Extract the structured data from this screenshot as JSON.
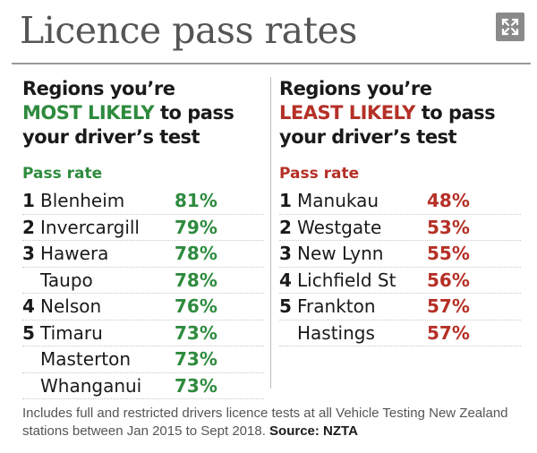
{
  "title": "Licence pass rates",
  "colors": {
    "most": "#2e8b3e",
    "least": "#b53027",
    "title": "#555555"
  },
  "expand_icon": "expand-arrows-icon",
  "chart_data": [
    {
      "type": "table",
      "heading_pre": "Regions you’re",
      "heading_highlight": "MOST LIKELY",
      "heading_mid": "to pass",
      "heading_post": "your driver’s test",
      "subheading": "Pass rate",
      "rows": [
        {
          "rank": "1",
          "region": "Blenheim",
          "rate": "81%"
        },
        {
          "rank": "2",
          "region": "Invercargill",
          "rate": "79%"
        },
        {
          "rank": "3",
          "region": "Hawera",
          "rate": "78%"
        },
        {
          "rank": "",
          "region": "Taupo",
          "rate": "78%"
        },
        {
          "rank": "4",
          "region": "Nelson",
          "rate": "76%"
        },
        {
          "rank": "5",
          "region": "Timaru",
          "rate": "73%"
        },
        {
          "rank": "",
          "region": "Masterton",
          "rate": "73%"
        },
        {
          "rank": "",
          "region": "Whanganui",
          "rate": "73%"
        }
      ]
    },
    {
      "type": "table",
      "heading_pre": "Regions you’re",
      "heading_highlight": "LEAST LIKELY",
      "heading_mid": "to pass",
      "heading_post": "your driver’s test",
      "subheading": "Pass rate",
      "rows": [
        {
          "rank": "1",
          "region": "Manukau",
          "rate": "48%"
        },
        {
          "rank": "2",
          "region": "Westgate",
          "rate": "53%"
        },
        {
          "rank": "3",
          "region": "New Lynn",
          "rate": "55%"
        },
        {
          "rank": "4",
          "region": "Lichfield St",
          "rate": "56%"
        },
        {
          "rank": "5",
          "region": "Frankton",
          "rate": "57%"
        },
        {
          "rank": "",
          "region": "Hastings",
          "rate": "57%"
        }
      ]
    }
  ],
  "footnote": {
    "text": "Includes full and restricted drivers licence tests at all Vehicle Testing New Zealand stations between Jan 2015 to Sept 2018.",
    "source": "Source: NZTA"
  }
}
